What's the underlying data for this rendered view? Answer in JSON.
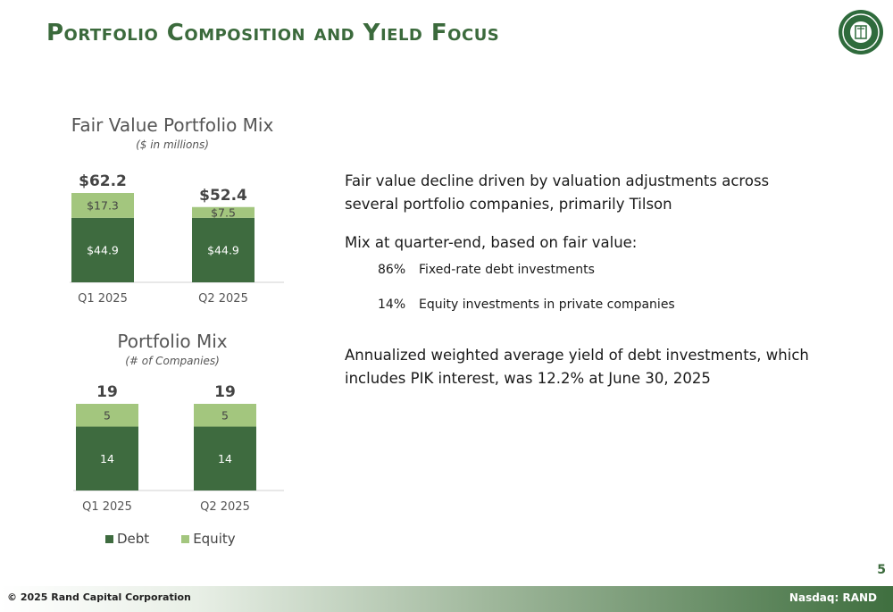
{
  "title": "Portfolio Composition and Yield Focus",
  "colors": {
    "debt": "#3e6b3f",
    "equity": "#a3c67e",
    "title_green": "#3b6a3c"
  },
  "chart_data": [
    {
      "type": "bar",
      "stacked": true,
      "title": "Fair Value Portfolio Mix",
      "subtitle": "($ in millions)",
      "categories": [
        "Q1 2025",
        "Q2 2025"
      ],
      "series": [
        {
          "name": "Debt",
          "values": [
            44.9,
            44.9
          ],
          "labels": [
            "$44.9",
            "$44.9"
          ]
        },
        {
          "name": "Equity",
          "values": [
            17.3,
            7.5
          ],
          "labels": [
            "$17.3",
            "$7.5"
          ]
        }
      ],
      "totals": [
        "$62.2",
        "$52.4"
      ],
      "ylim": [
        0,
        62.2
      ]
    },
    {
      "type": "bar",
      "stacked": true,
      "title": "Portfolio Mix",
      "subtitle": "(# of Companies)",
      "categories": [
        "Q1 2025",
        "Q2 2025"
      ],
      "series": [
        {
          "name": "Debt",
          "values": [
            14,
            14
          ],
          "labels": [
            "14",
            "14"
          ]
        },
        {
          "name": "Equity",
          "values": [
            5,
            5
          ],
          "labels": [
            "5",
            "5"
          ]
        }
      ],
      "totals": [
        "19",
        "19"
      ],
      "ylim": [
        0,
        19
      ]
    }
  ],
  "legend": {
    "debt": "Debt",
    "equity": "Equity"
  },
  "commentary": {
    "para1": "Fair value decline driven by valuation adjustments across several portfolio companies, primarily Tilson",
    "para2": "Mix at quarter-end, based on fair value:",
    "bullets": [
      {
        "pct": "86%",
        "label": "Fixed-rate debt investments"
      },
      {
        "pct": "14%",
        "label": "Equity investments in private companies"
      }
    ],
    "para3": "Annualized weighted average yield of debt investments, which includes PIK interest, was 12.2% at June 30, 2025"
  },
  "footer": {
    "copyright": "© 2025 Rand Capital Corporation",
    "ticker": "Nasdaq: RAND"
  },
  "page_number": "5"
}
